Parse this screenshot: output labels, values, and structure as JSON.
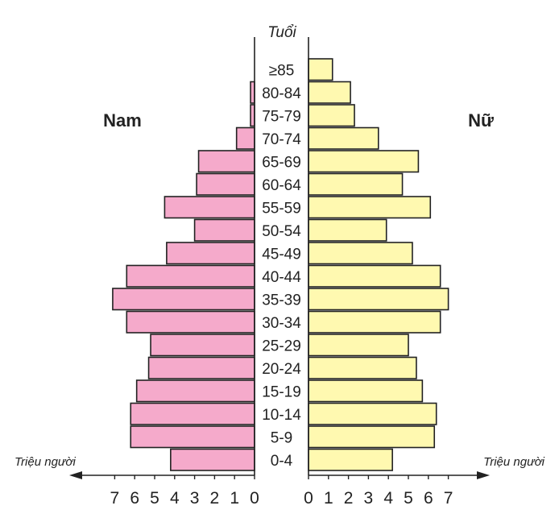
{
  "chart_data": {
    "type": "bar",
    "orientation": "horizontal",
    "subtype": "population-pyramid",
    "categories": [
      "0-4",
      "5-9",
      "10-14",
      "15-19",
      "20-24",
      "25-29",
      "30-34",
      "35-39",
      "40-44",
      "45-49",
      "50-54",
      "55-59",
      "60-64",
      "65-69",
      "70-74",
      "75-79",
      "80-84",
      "≥85"
    ],
    "series": [
      {
        "name": "Nam",
        "side": "left",
        "color": "#F5AACB",
        "values": [
          4.2,
          6.2,
          6.2,
          5.9,
          5.3,
          5.2,
          6.4,
          7.1,
          6.4,
          4.4,
          3.0,
          4.5,
          2.9,
          2.8,
          0.9,
          0.2,
          0.2,
          0.0
        ]
      },
      {
        "name": "Nữ",
        "side": "right",
        "color": "#FFF9B0",
        "values": [
          4.2,
          6.3,
          6.4,
          5.7,
          5.4,
          5.0,
          6.6,
          7.0,
          6.6,
          5.2,
          3.9,
          6.1,
          4.7,
          5.5,
          3.5,
          2.3,
          2.1,
          1.2
        ]
      }
    ],
    "axis_title": "Tuổi",
    "unit_label_left": "Triệu người",
    "unit_label_right": "Triệu người",
    "ticks_left": [
      "7",
      "6",
      "5",
      "4",
      "3",
      "2",
      "1",
      "0"
    ],
    "ticks_right": [
      "0",
      "1",
      "2",
      "3",
      "4",
      "5",
      "6",
      "7"
    ],
    "xlim": [
      0,
      7
    ],
    "grid": false,
    "legend": "none"
  }
}
